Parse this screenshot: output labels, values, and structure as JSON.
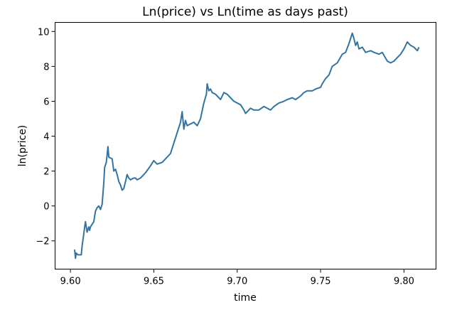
{
  "chart_data": {
    "type": "line",
    "title": "Ln(price) vs Ln(time as days past)",
    "xlabel": "time",
    "ylabel": "ln(price)",
    "xlim": [
      9.591,
      9.819
    ],
    "ylim": [
      -3.6,
      10.5
    ],
    "xticks": [
      "9.60",
      "9.65",
      "9.70",
      "9.75",
      "9.80"
    ],
    "yticks": [
      "−2",
      "0",
      "2",
      "4",
      "6",
      "8",
      "10"
    ],
    "xtick_values": [
      9.6,
      9.65,
      9.7,
      9.75,
      9.8
    ],
    "ytick_values": [
      -2,
      0,
      2,
      4,
      6,
      8,
      10
    ],
    "grid": false,
    "legend": "none",
    "series": [
      {
        "color": "#3274A1",
        "x": [
          9.6025,
          9.603,
          9.6035,
          9.6045,
          9.6055,
          9.6065,
          9.607,
          9.608,
          9.609,
          9.61,
          9.611,
          9.6115,
          9.612,
          9.614,
          9.615,
          9.616,
          9.617,
          9.618,
          9.619,
          9.62,
          9.6205,
          9.6215,
          9.6225,
          9.623,
          9.625,
          9.626,
          9.627,
          9.628,
          9.629,
          9.63,
          9.631,
          9.632,
          9.633,
          9.634,
          9.635,
          9.636,
          9.638,
          9.639,
          9.64,
          9.642,
          9.645,
          9.648,
          9.65,
          9.652,
          9.655,
          9.657,
          9.66,
          9.662,
          9.664,
          9.666,
          9.667,
          9.668,
          9.669,
          9.67,
          9.672,
          9.674,
          9.676,
          9.678,
          9.68,
          9.6815,
          9.682,
          9.683,
          9.684,
          9.685,
          9.687,
          9.689,
          9.69,
          9.692,
          9.694,
          9.696,
          9.698,
          9.7,
          9.702,
          9.704,
          9.705,
          9.708,
          9.71,
          9.713,
          9.716,
          9.72,
          9.722,
          9.725,
          9.728,
          9.73,
          9.733,
          9.735,
          9.738,
          9.74,
          9.742,
          9.745,
          9.747,
          9.75,
          9.751,
          9.753,
          9.755,
          9.757,
          9.76,
          9.763,
          9.765,
          9.767,
          9.769,
          9.77,
          9.771,
          9.772,
          9.773,
          9.775,
          9.777,
          9.78,
          9.782,
          9.785,
          9.787,
          9.79,
          9.792,
          9.794,
          9.796,
          9.798,
          9.8,
          9.802,
          9.804,
          9.806,
          9.808,
          9.809
        ],
        "y": [
          -2.5,
          -3.0,
          -2.7,
          -2.8,
          -2.8,
          -2.8,
          -2.3,
          -1.6,
          -0.9,
          -1.5,
          -1.2,
          -1.4,
          -1.2,
          -0.9,
          -0.3,
          -0.1,
          0.0,
          -0.2,
          0.1,
          1.3,
          2.2,
          2.5,
          3.4,
          2.8,
          2.7,
          2.0,
          2.1,
          1.8,
          1.4,
          1.2,
          0.9,
          1.0,
          1.4,
          1.8,
          1.6,
          1.5,
          1.6,
          1.6,
          1.5,
          1.6,
          1.9,
          2.3,
          2.6,
          2.4,
          2.5,
          2.7,
          3.0,
          3.6,
          4.2,
          4.8,
          5.4,
          4.4,
          4.9,
          4.6,
          4.7,
          4.8,
          4.6,
          5.0,
          5.9,
          6.4,
          7.0,
          6.6,
          6.7,
          6.5,
          6.4,
          6.2,
          6.1,
          6.5,
          6.4,
          6.2,
          6.0,
          5.9,
          5.8,
          5.5,
          5.3,
          5.6,
          5.5,
          5.5,
          5.7,
          5.5,
          5.7,
          5.9,
          6.0,
          6.1,
          6.2,
          6.1,
          6.3,
          6.5,
          6.6,
          6.6,
          6.7,
          6.8,
          7.0,
          7.3,
          7.5,
          8.0,
          8.2,
          8.7,
          8.8,
          9.3,
          9.9,
          9.6,
          9.2,
          9.4,
          9.0,
          9.1,
          8.8,
          8.9,
          8.8,
          8.7,
          8.8,
          8.3,
          8.2,
          8.3,
          8.5,
          8.7,
          9.0,
          9.4,
          9.2,
          9.1,
          8.9,
          9.1
        ]
      }
    ]
  }
}
